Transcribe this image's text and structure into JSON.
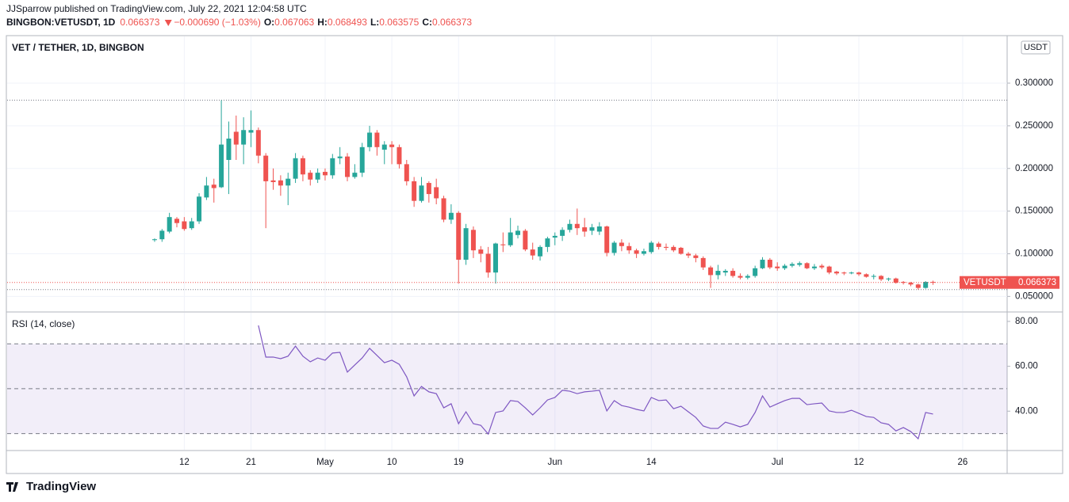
{
  "header": {
    "published": "JJSparrow published on TradingView.com, July 22, 2021 12:04:58 UTC",
    "symbol": "BINGBON:VETUSDT, 1D",
    "change": "−0.000690 (−1.03%)",
    "o": "O:",
    "h": "H:",
    "l": "L:",
    "c": "C:"
  },
  "footer": "TradingView",
  "chart_data": [
    {
      "type": "candlestick",
      "title": "VET / TETHER, 1D, BINGBON",
      "unit": "USDT",
      "symbol_label": "VETUSDT",
      "up_color": "#26a69a",
      "down_color": "#ef5350",
      "grid": true,
      "x": [
        "2021-04-08",
        "2021-04-09",
        "2021-04-10",
        "2021-04-11",
        "2021-04-12",
        "2021-04-13",
        "2021-04-14",
        "2021-04-15",
        "2021-04-16",
        "2021-04-17",
        "2021-04-18",
        "2021-04-19",
        "2021-04-20",
        "2021-04-21",
        "2021-04-22",
        "2021-04-23",
        "2021-04-24",
        "2021-04-25",
        "2021-04-26",
        "2021-04-27",
        "2021-04-28",
        "2021-04-29",
        "2021-04-30",
        "2021-05-01",
        "2021-05-02",
        "2021-05-03",
        "2021-05-04",
        "2021-05-05",
        "2021-05-06",
        "2021-05-07",
        "2021-05-08",
        "2021-05-09",
        "2021-05-10",
        "2021-05-11",
        "2021-05-12",
        "2021-05-13",
        "2021-05-14",
        "2021-05-15",
        "2021-05-16",
        "2021-05-17",
        "2021-05-18",
        "2021-05-19",
        "2021-05-20",
        "2021-05-21",
        "2021-05-22",
        "2021-05-23",
        "2021-05-24",
        "2021-05-25",
        "2021-05-26",
        "2021-05-27",
        "2021-05-28",
        "2021-05-29",
        "2021-05-30",
        "2021-05-31",
        "2021-06-01",
        "2021-06-02",
        "2021-06-03",
        "2021-06-04",
        "2021-06-05",
        "2021-06-06",
        "2021-06-07",
        "2021-06-08",
        "2021-06-09",
        "2021-06-10",
        "2021-06-11",
        "2021-06-12",
        "2021-06-13",
        "2021-06-14",
        "2021-06-15",
        "2021-06-16",
        "2021-06-17",
        "2021-06-18",
        "2021-06-19",
        "2021-06-20",
        "2021-06-21",
        "2021-06-22",
        "2021-06-23",
        "2021-06-24",
        "2021-06-25",
        "2021-06-26",
        "2021-06-27",
        "2021-06-28",
        "2021-06-29",
        "2021-06-30",
        "2021-07-01",
        "2021-07-02",
        "2021-07-03",
        "2021-07-04",
        "2021-07-05",
        "2021-07-06",
        "2021-07-07",
        "2021-07-08",
        "2021-07-09",
        "2021-07-10",
        "2021-07-11",
        "2021-07-12",
        "2021-07-13",
        "2021-07-14",
        "2021-07-15",
        "2021-07-16",
        "2021-07-17",
        "2021-07-18",
        "2021-07-19",
        "2021-07-20",
        "2021-07-21",
        "2021-07-22"
      ],
      "open": [
        0.116,
        0.117,
        0.126,
        0.141,
        0.138,
        0.13,
        0.138,
        0.166,
        0.181,
        0.178,
        0.21,
        0.243,
        0.228,
        0.242,
        0.245,
        0.215,
        0.186,
        0.186,
        0.18,
        0.188,
        0.212,
        0.195,
        0.187,
        0.196,
        0.192,
        0.212,
        0.214,
        0.19,
        0.195,
        0.225,
        0.242,
        0.222,
        0.228,
        0.225,
        0.205,
        0.185,
        0.162,
        0.183,
        0.178,
        0.165,
        0.14,
        0.148,
        0.093,
        0.128,
        0.105,
        0.1,
        0.078,
        0.111,
        0.11,
        0.122,
        0.127,
        0.105,
        0.097,
        0.108,
        0.119,
        0.121,
        0.128,
        0.135,
        0.131,
        0.127,
        0.126,
        0.132,
        0.101,
        0.113,
        0.109,
        0.104,
        0.1,
        0.102,
        0.112,
        0.108,
        0.108,
        0.107,
        0.1,
        0.098,
        0.095,
        0.084,
        0.075,
        0.078,
        0.08,
        0.074,
        0.072,
        0.074,
        0.083,
        0.093,
        0.085,
        0.083,
        0.086,
        0.087,
        0.089,
        0.083,
        0.086,
        0.085,
        0.079,
        0.078,
        0.077,
        0.078,
        0.076,
        0.073,
        0.074,
        0.07,
        0.071,
        0.067,
        0.066,
        0.064,
        0.06,
        0.067063
      ],
      "high": [
        0.118,
        0.129,
        0.148,
        0.143,
        0.143,
        0.142,
        0.171,
        0.19,
        0.188,
        0.28,
        0.255,
        0.262,
        0.26,
        0.268,
        0.248,
        0.218,
        0.2,
        0.192,
        0.195,
        0.218,
        0.215,
        0.198,
        0.2,
        0.2,
        0.217,
        0.225,
        0.218,
        0.205,
        0.23,
        0.25,
        0.245,
        0.232,
        0.232,
        0.228,
        0.21,
        0.19,
        0.19,
        0.185,
        0.188,
        0.168,
        0.158,
        0.15,
        0.135,
        0.132,
        0.109,
        0.108,
        0.113,
        0.125,
        0.142,
        0.133,
        0.129,
        0.113,
        0.11,
        0.12,
        0.125,
        0.131,
        0.14,
        0.153,
        0.142,
        0.135,
        0.137,
        0.133,
        0.115,
        0.117,
        0.113,
        0.106,
        0.106,
        0.115,
        0.114,
        0.112,
        0.11,
        0.108,
        0.102,
        0.1,
        0.097,
        0.086,
        0.087,
        0.082,
        0.083,
        0.077,
        0.076,
        0.086,
        0.096,
        0.095,
        0.09,
        0.088,
        0.09,
        0.091,
        0.09,
        0.088,
        0.088,
        0.086,
        0.08,
        0.079,
        0.079,
        0.079,
        0.077,
        0.076,
        0.075,
        0.072,
        0.072,
        0.068,
        0.067,
        0.065,
        0.068,
        0.068493
      ],
      "low": [
        0.114,
        0.114,
        0.124,
        0.131,
        0.127,
        0.128,
        0.135,
        0.163,
        0.16,
        0.177,
        0.17,
        0.21,
        0.205,
        0.225,
        0.206,
        0.13,
        0.175,
        0.168,
        0.157,
        0.183,
        0.185,
        0.18,
        0.183,
        0.186,
        0.188,
        0.205,
        0.185,
        0.188,
        0.19,
        0.22,
        0.215,
        0.205,
        0.205,
        0.2,
        0.18,
        0.155,
        0.16,
        0.16,
        0.158,
        0.137,
        0.135,
        0.065,
        0.087,
        0.095,
        0.09,
        0.072,
        0.065,
        0.102,
        0.108,
        0.118,
        0.103,
        0.093,
        0.092,
        0.102,
        0.11,
        0.115,
        0.125,
        0.122,
        0.12,
        0.122,
        0.122,
        0.097,
        0.098,
        0.103,
        0.1,
        0.095,
        0.098,
        0.1,
        0.105,
        0.104,
        0.102,
        0.099,
        0.095,
        0.09,
        0.081,
        0.06,
        0.07,
        0.074,
        0.072,
        0.07,
        0.07,
        0.072,
        0.082,
        0.082,
        0.08,
        0.081,
        0.084,
        0.085,
        0.082,
        0.081,
        0.082,
        0.076,
        0.075,
        0.075,
        0.076,
        0.074,
        0.072,
        0.07,
        0.068,
        0.068,
        0.065,
        0.064,
        0.062,
        0.058,
        0.059,
        0.063575
      ],
      "close": [
        0.117,
        0.127,
        0.143,
        0.136,
        0.129,
        0.138,
        0.167,
        0.18,
        0.177,
        0.228,
        0.235,
        0.228,
        0.245,
        0.245,
        0.215,
        0.185,
        0.184,
        0.18,
        0.188,
        0.212,
        0.193,
        0.187,
        0.195,
        0.192,
        0.212,
        0.214,
        0.19,
        0.195,
        0.225,
        0.242,
        0.225,
        0.228,
        0.225,
        0.205,
        0.185,
        0.162,
        0.18,
        0.17,
        0.165,
        0.14,
        0.148,
        0.093,
        0.13,
        0.104,
        0.1,
        0.078,
        0.112,
        0.11,
        0.125,
        0.127,
        0.105,
        0.098,
        0.108,
        0.118,
        0.121,
        0.128,
        0.135,
        0.13,
        0.126,
        0.131,
        0.132,
        0.101,
        0.113,
        0.109,
        0.104,
        0.1,
        0.103,
        0.113,
        0.108,
        0.107,
        0.104,
        0.1,
        0.098,
        0.095,
        0.084,
        0.075,
        0.08,
        0.08,
        0.074,
        0.072,
        0.074,
        0.083,
        0.093,
        0.084,
        0.083,
        0.086,
        0.088,
        0.089,
        0.083,
        0.085,
        0.084,
        0.078,
        0.077,
        0.077,
        0.078,
        0.076,
        0.073,
        0.074,
        0.07,
        0.071,
        0.066,
        0.066,
        0.064,
        0.06,
        0.067,
        0.066373
      ],
      "xlim": [
        "2021-03-19",
        "2021-08-01"
      ],
      "xticks": [
        {
          "value": "2021-04-12",
          "label": "12"
        },
        {
          "value": "2021-04-21",
          "label": "21"
        },
        {
          "value": "2021-05-01",
          "label": "May"
        },
        {
          "value": "2021-05-10",
          "label": "10"
        },
        {
          "value": "2021-05-19",
          "label": "19"
        },
        {
          "value": "2021-06-01",
          "label": "Jun"
        },
        {
          "value": "2021-06-14",
          "label": "14"
        },
        {
          "value": "2021-07-01",
          "label": "Jul"
        },
        {
          "value": "2021-07-12",
          "label": "12"
        },
        {
          "value": "2021-07-26",
          "label": "26"
        }
      ],
      "ylim": [
        0.0327,
        0.3557
      ],
      "yticks": [
        {
          "value": 0.05,
          "label": "0.050000"
        },
        {
          "value": 0.1,
          "label": "0.100000"
        },
        {
          "value": 0.15,
          "label": "0.150000"
        },
        {
          "value": 0.2,
          "label": "0.200000"
        },
        {
          "value": 0.25,
          "label": "0.250000"
        },
        {
          "value": 0.3,
          "label": "0.300000"
        }
      ]
    },
    {
      "type": "line",
      "title": "RSI (14, close)",
      "color": "#7e57c2",
      "band_color": "#7e57c2",
      "values": [
        null,
        null,
        null,
        null,
        null,
        null,
        null,
        null,
        null,
        null,
        null,
        null,
        null,
        null,
        78.2,
        64.1,
        64.1,
        63.4,
        64.5,
        69.0,
        64.5,
        62.0,
        63.7,
        62.7,
        65.9,
        66.2,
        57.4,
        60.6,
        63.7,
        68.0,
        64.8,
        61.6,
        62.7,
        60.9,
        55.3,
        46.8,
        51.0,
        48.6,
        47.8,
        41.5,
        43.3,
        34.4,
        39.7,
        34.4,
        33.7,
        29.8,
        39.4,
        40.1,
        44.7,
        44.3,
        41.5,
        38.3,
        41.5,
        45.0,
        46.1,
        49.3,
        48.9,
        47.8,
        48.6,
        48.9,
        49.3,
        40.1,
        44.7,
        42.5,
        41.8,
        40.8,
        40.1,
        46.1,
        44.7,
        45.0,
        41.1,
        42.2,
        39.7,
        37.2,
        33.4,
        32.3,
        32.3,
        35.1,
        34.1,
        33.0,
        34.1,
        39.4,
        46.8,
        41.8,
        43.3,
        44.7,
        45.7,
        45.7,
        42.9,
        43.3,
        43.6,
        40.1,
        39.4,
        39.4,
        40.4,
        39.0,
        37.6,
        37.2,
        34.8,
        34.1,
        31.2,
        32.7,
        30.9,
        27.7,
        39.4,
        38.7
      ],
      "ylim": [
        22.8,
        83.5
      ],
      "yticks": [
        {
          "value": 40,
          "label": "40.00"
        },
        {
          "value": 60,
          "label": "60.00"
        },
        {
          "value": 80,
          "label": "80.00"
        }
      ],
      "levels": [
        70,
        50,
        30
      ]
    }
  ]
}
